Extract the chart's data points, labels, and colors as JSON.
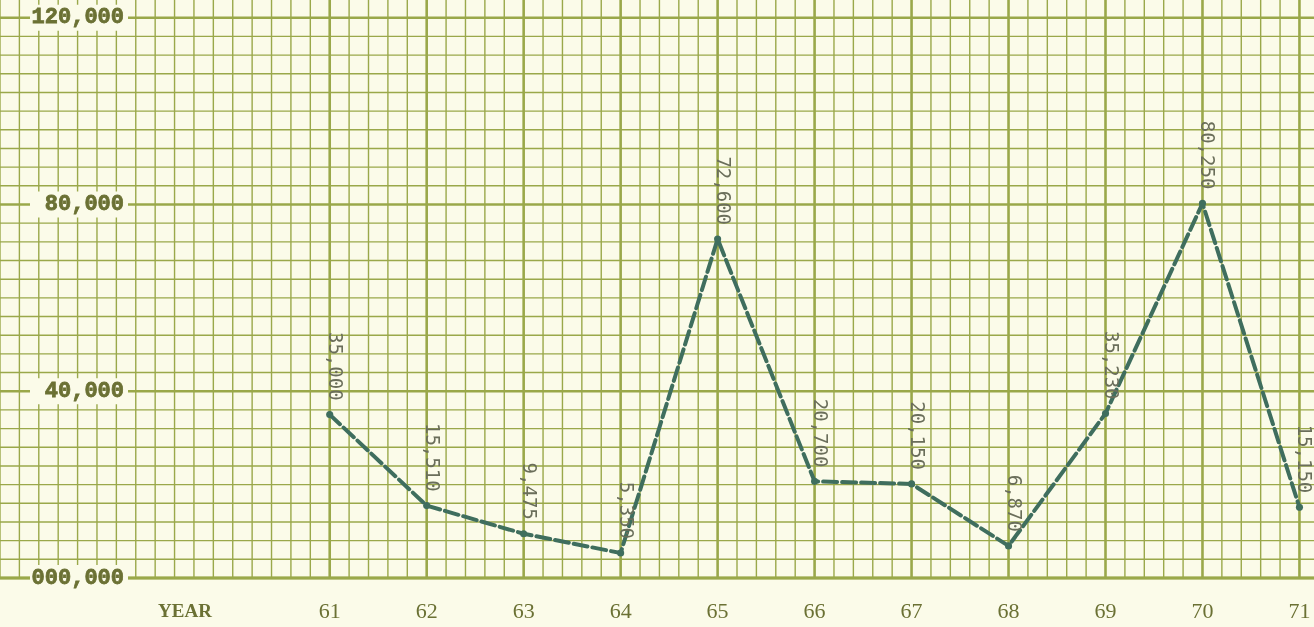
{
  "chart_data": {
    "type": "line",
    "xlabel": "YEAR",
    "x": [
      61,
      62,
      63,
      64,
      65,
      66,
      67,
      68,
      69,
      70,
      71
    ],
    "series": [
      {
        "color": "#3f6e5e",
        "values": [
          35000,
          15510,
          9475,
          5350,
          72600,
          20700,
          20150,
          6870,
          35230,
          80250,
          15150
        ],
        "value_labels": [
          "35,000",
          "15,510",
          "9,475",
          "5,350",
          "72,600",
          "20,700",
          "20,150",
          "6,870",
          "35,230",
          "80,250",
          "15,150"
        ]
      }
    ],
    "xlim": [
      57.6,
      71.15
    ],
    "xticks": [
      {
        "value": 57.6,
        "label": null
      },
      {
        "value": 57.8,
        "label": null
      },
      {
        "value": 58,
        "label": null
      },
      {
        "value": 58.2,
        "label": null
      },
      {
        "value": 58.4,
        "label": null
      },
      {
        "value": 58.6,
        "label": null
      },
      {
        "value": 58.8,
        "label": null
      },
      {
        "value": 59,
        "label": null
      },
      {
        "value": 59.2,
        "label": null
      },
      {
        "value": 59.4,
        "label": null
      },
      {
        "value": 59.6,
        "label": null
      },
      {
        "value": 59.8,
        "label": null
      },
      {
        "value": 60,
        "label": null
      },
      {
        "value": 60.2,
        "label": null
      },
      {
        "value": 60.4,
        "label": null
      },
      {
        "value": 60.6,
        "label": null
      },
      {
        "value": 60.8,
        "label": null
      },
      61,
      {
        "value": 61.2,
        "label": null
      },
      {
        "value": 61.4,
        "label": null
      },
      {
        "value": 61.6,
        "label": null
      },
      {
        "value": 61.8,
        "label": null
      },
      62,
      {
        "value": 62.2,
        "label": null
      },
      {
        "value": 62.4,
        "label": null
      },
      {
        "value": 62.6,
        "label": null
      },
      {
        "value": 62.8,
        "label": null
      },
      63,
      {
        "value": 63.2,
        "label": null
      },
      {
        "value": 63.4,
        "label": null
      },
      {
        "value": 63.6,
        "label": null
      },
      {
        "value": 63.8,
        "label": null
      },
      64,
      {
        "value": 64.2,
        "label": null
      },
      {
        "value": 64.4,
        "label": null
      },
      {
        "value": 64.6,
        "label": null
      },
      {
        "value": 64.8,
        "label": null
      },
      65,
      {
        "value": 65.2,
        "label": null
      },
      {
        "value": 65.4,
        "label": null
      },
      {
        "value": 65.6,
        "label": null
      },
      {
        "value": 65.8,
        "label": null
      },
      66,
      {
        "value": 66.2,
        "label": null
      },
      {
        "value": 66.4,
        "label": null
      },
      {
        "value": 66.6,
        "label": null
      },
      {
        "value": 66.8,
        "label": null
      },
      67,
      {
        "value": 67.2,
        "label": null
      },
      {
        "value": 67.4,
        "label": null
      },
      {
        "value": 67.6,
        "label": null
      },
      {
        "value": 67.8,
        "label": null
      },
      68,
      {
        "value": 68.2,
        "label": null
      },
      {
        "value": 68.4,
        "label": null
      },
      {
        "value": 68.6,
        "label": null
      },
      {
        "value": 68.8,
        "label": null
      },
      69,
      {
        "value": 69.2,
        "label": null
      },
      {
        "value": 69.4,
        "label": null
      },
      {
        "value": 69.6,
        "label": null
      },
      {
        "value": 69.8,
        "label": null
      },
      70,
      {
        "value": 70.2,
        "label": null
      },
      {
        "value": 70.4,
        "label": null
      },
      {
        "value": 70.6,
        "label": null
      },
      {
        "value": 70.8,
        "label": null
      },
      71
    ],
    "ylim": [
      0,
      123800
    ],
    "yticks": [
      {
        "value": 0,
        "label": "000,000"
      },
      {
        "value": 4000,
        "label": null
      },
      {
        "value": 8000,
        "label": null
      },
      {
        "value": 12000,
        "label": null
      },
      {
        "value": 16000,
        "label": null
      },
      {
        "value": 20000,
        "label": null
      },
      {
        "value": 24000,
        "label": null
      },
      {
        "value": 28000,
        "label": null
      },
      {
        "value": 32000,
        "label": null
      },
      {
        "value": 36000,
        "label": null
      },
      {
        "value": 40000,
        "label": "40,000"
      },
      {
        "value": 44000,
        "label": null
      },
      {
        "value": 48000,
        "label": null
      },
      {
        "value": 52000,
        "label": null
      },
      {
        "value": 56000,
        "label": null
      },
      {
        "value": 60000,
        "label": null
      },
      {
        "value": 64000,
        "label": null
      },
      {
        "value": 68000,
        "label": null
      },
      {
        "value": 72000,
        "label": null
      },
      {
        "value": 76000,
        "label": null
      },
      {
        "value": 80000,
        "label": "80,000"
      },
      {
        "value": 84000,
        "label": null
      },
      {
        "value": 88000,
        "label": null
      },
      {
        "value": 92000,
        "label": null
      },
      {
        "value": 96000,
        "label": null
      },
      {
        "value": 100000,
        "label": null
      },
      {
        "value": 104000,
        "label": null
      },
      {
        "value": 108000,
        "label": null
      },
      {
        "value": 112000,
        "label": null
      },
      {
        "value": 116000,
        "label": null
      },
      {
        "value": 120000,
        "label": "120,000"
      }
    ],
    "grid": true,
    "marker": "circle",
    "line_style": "dashed"
  }
}
